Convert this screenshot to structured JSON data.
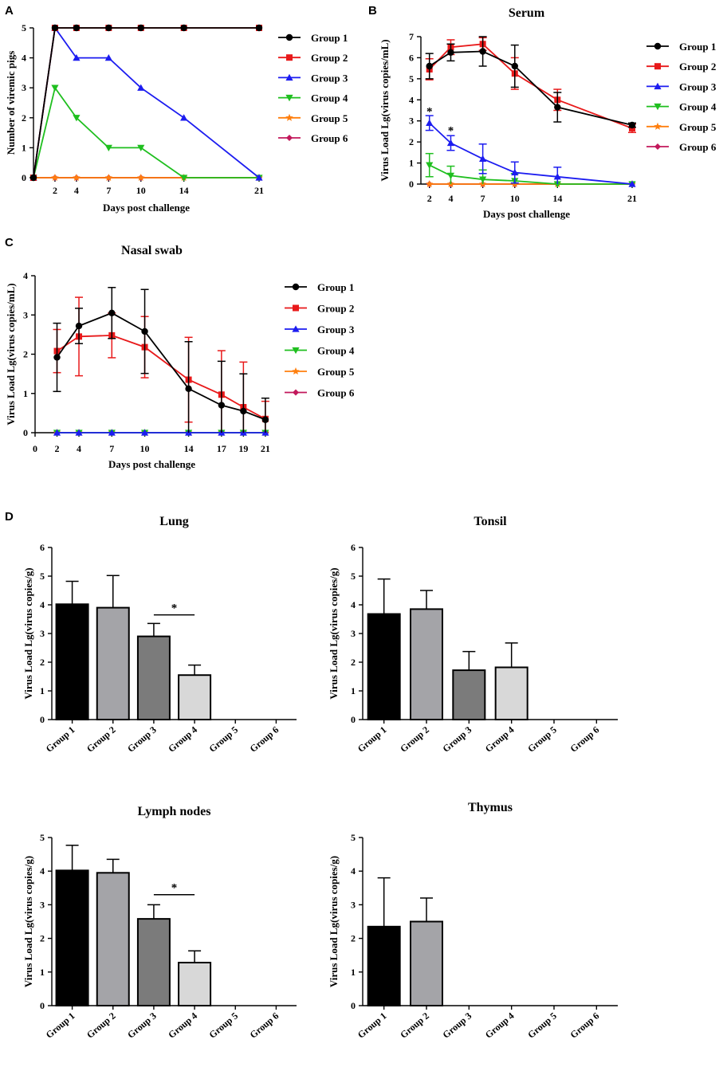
{
  "panels": {
    "A": "A",
    "B": "B",
    "C": "C",
    "D": "D"
  },
  "groups": [
    "Group 1",
    "Group 2",
    "Group 3",
    "Group 4",
    "Group 5",
    "Group 6"
  ],
  "colors": {
    "group1": "#000000",
    "group2": "#e8191a",
    "group3": "#1c1cf0",
    "group4": "#1fbf1f",
    "group5": "#ff7f0e",
    "group6": "#c2185b",
    "bar1": "#000000",
    "bar2": "#a4a4a8",
    "bar3": "#7b7b7b",
    "bar4": "#d8d8d8"
  },
  "markers": [
    "circle",
    "square",
    "triangle-up",
    "triangle-down",
    "star",
    "diamond"
  ],
  "chart_data": [
    {
      "id": "A",
      "type": "line",
      "title": "",
      "xlabel": "Days post challenge",
      "ylabel": "Number of viremic pigs",
      "x": [
        0,
        2,
        4,
        7,
        10,
        14,
        21
      ],
      "xticks": [
        2,
        4,
        7,
        10,
        14,
        21
      ],
      "ylim": [
        0,
        5
      ],
      "yticks": [
        0,
        1,
        2,
        3,
        4,
        5
      ],
      "series": [
        {
          "name": "Group 1",
          "values": [
            0,
            5,
            5,
            5,
            5,
            5,
            5
          ]
        },
        {
          "name": "Group 2",
          "values": [
            0,
            5,
            5,
            5,
            5,
            5,
            5
          ]
        },
        {
          "name": "Group 3",
          "values": [
            0,
            5,
            4,
            4,
            3,
            2,
            0
          ]
        },
        {
          "name": "Group 4",
          "values": [
            0,
            3,
            2,
            1,
            1,
            0,
            0
          ]
        },
        {
          "name": "Group 5",
          "values": [
            0,
            0,
            0,
            0,
            0,
            0,
            0
          ]
        },
        {
          "name": "Group 6",
          "values": [
            0,
            0,
            0,
            0,
            0,
            0,
            0
          ]
        }
      ]
    },
    {
      "id": "B",
      "type": "line",
      "title": "Serum",
      "xlabel": "Days post challenge",
      "ylabel": "Virus Load Lg(virus copies/mL)",
      "x": [
        2,
        4,
        7,
        10,
        14,
        21
      ],
      "xticks": [
        2,
        4,
        7,
        10,
        14,
        21
      ],
      "ylim": [
        0,
        7
      ],
      "yticks": [
        0,
        1,
        2,
        3,
        4,
        5,
        6,
        7
      ],
      "annotations": [
        {
          "text": "*",
          "x": 2,
          "y": 3.5
        },
        {
          "text": "*",
          "x": 4,
          "y": 2.6
        }
      ],
      "series": [
        {
          "name": "Group 1",
          "values": [
            5.6,
            6.25,
            6.3,
            5.6,
            3.65,
            2.8
          ],
          "errors": [
            0.6,
            0.4,
            0.7,
            1.0,
            0.7,
            0.1
          ]
        },
        {
          "name": "Group 2",
          "values": [
            5.45,
            6.5,
            6.65,
            5.25,
            4.0,
            2.65
          ],
          "errors": [
            0.5,
            0.35,
            0.3,
            0.75,
            0.5,
            0.2
          ]
        },
        {
          "name": "Group 3",
          "values": [
            2.9,
            1.95,
            1.2,
            0.55,
            0.35,
            0.0
          ],
          "errors": [
            0.35,
            0.35,
            0.7,
            0.5,
            0.45,
            0.0
          ]
        },
        {
          "name": "Group 4",
          "values": [
            0.9,
            0.4,
            0.22,
            0.15,
            0.0,
            0.0
          ],
          "errors": [
            0.55,
            0.45,
            0.45,
            0.35,
            0.0,
            0.0
          ]
        },
        {
          "name": "Group 5",
          "values": [
            0,
            0,
            0,
            0,
            0,
            0
          ],
          "errors": [
            0,
            0,
            0,
            0,
            0,
            0
          ]
        },
        {
          "name": "Group 6",
          "values": [
            0,
            0,
            0,
            0,
            0,
            0
          ],
          "errors": [
            0,
            0,
            0,
            0,
            0,
            0
          ]
        }
      ]
    },
    {
      "id": "C",
      "type": "line",
      "title": "Nasal swab",
      "xlabel": "Days post challenge",
      "ylabel": "Virus Load Lg(virus copies/mL)",
      "x": [
        2,
        4,
        7,
        10,
        14,
        17,
        19,
        21
      ],
      "xticks": [
        0,
        2,
        4,
        7,
        10,
        14,
        17,
        19,
        21
      ],
      "ylim": [
        0,
        4
      ],
      "yticks": [
        0,
        1,
        2,
        3,
        4
      ],
      "series": [
        {
          "name": "Group 1",
          "values": [
            1.92,
            2.72,
            3.05,
            2.58,
            1.12,
            0.7,
            0.55,
            0.33
          ],
          "errors": [
            0.87,
            0.45,
            0.65,
            1.07,
            1.2,
            1.12,
            0.95,
            0.55
          ]
        },
        {
          "name": "Group 2",
          "values": [
            2.08,
            2.45,
            2.48,
            2.18,
            1.35,
            0.97,
            0.65,
            0.35
          ],
          "errors": [
            0.55,
            1.0,
            0.57,
            0.78,
            1.08,
            1.12,
            1.15,
            0.45
          ]
        },
        {
          "name": "Group 3",
          "values": [
            0,
            0,
            0,
            0,
            0,
            0,
            0,
            0
          ],
          "errors": [
            0,
            0,
            0,
            0,
            0,
            0,
            0,
            0
          ]
        },
        {
          "name": "Group 4",
          "values": [
            0,
            0,
            0,
            0,
            0,
            0,
            0,
            0
          ],
          "errors": [
            0,
            0,
            0,
            0,
            0,
            0,
            0,
            0
          ]
        },
        {
          "name": "Group 5",
          "values": [
            0,
            0,
            0,
            0,
            0,
            0,
            0,
            0
          ],
          "errors": [
            0,
            0,
            0,
            0,
            0,
            0,
            0,
            0
          ]
        },
        {
          "name": "Group 6",
          "values": [
            0,
            0,
            0,
            0,
            0,
            0,
            0,
            0
          ],
          "errors": [
            0,
            0,
            0,
            0,
            0,
            0,
            0,
            0
          ]
        }
      ]
    },
    {
      "id": "D-lung",
      "type": "bar",
      "title": "Lung",
      "ylabel": "Virus Load Lg(virus copies/g)",
      "categories": [
        "Group 1",
        "Group 2",
        "Group 3",
        "Group 4",
        "Group 5",
        "Group 6"
      ],
      "values": [
        4.02,
        3.9,
        2.9,
        1.55,
        0,
        0
      ],
      "errors": [
        0.8,
        1.12,
        0.45,
        0.35,
        0,
        0
      ],
      "ylim": [
        0,
        6
      ],
      "yticks": [
        0,
        1,
        2,
        3,
        4,
        5,
        6
      ],
      "significance": [
        {
          "text": "*",
          "between": [
            "Group 3",
            "Group 4"
          ],
          "y": 3.65
        }
      ]
    },
    {
      "id": "D-tonsil",
      "type": "bar",
      "title": "Tonsil",
      "ylabel": "Virus Load Lg(virus copies/g)",
      "categories": [
        "Group 1",
        "Group 2",
        "Group 3",
        "Group 4",
        "Group 5",
        "Group 6"
      ],
      "values": [
        3.68,
        3.85,
        1.72,
        1.82,
        0,
        0
      ],
      "errors": [
        1.22,
        0.65,
        0.65,
        0.85,
        0,
        0
      ],
      "ylim": [
        0,
        6
      ],
      "yticks": [
        0,
        1,
        2,
        3,
        4,
        5,
        6
      ]
    },
    {
      "id": "D-lymph",
      "type": "bar",
      "title": "Lymph nodes",
      "ylabel": "Virus Load Lg(virus copies/g)",
      "categories": [
        "Group 1",
        "Group 2",
        "Group 3",
        "Group 4",
        "Group 5",
        "Group 6"
      ],
      "values": [
        4.02,
        3.95,
        2.58,
        1.28,
        0,
        0
      ],
      "errors": [
        0.75,
        0.4,
        0.42,
        0.35,
        0,
        0
      ],
      "ylim": [
        0,
        5
      ],
      "yticks": [
        0,
        1,
        2,
        3,
        4,
        5
      ],
      "significance": [
        {
          "text": "*",
          "between": [
            "Group 3",
            "Group 4"
          ],
          "y": 3.3
        }
      ]
    },
    {
      "id": "D-thymus",
      "type": "bar",
      "title": "Thymus",
      "ylabel": "Virus Load Lg(virus copies/g)",
      "categories": [
        "Group 1",
        "Group 2",
        "Group 3",
        "Group 4",
        "Group 5",
        "Group 6"
      ],
      "values": [
        2.35,
        2.5,
        0,
        0,
        0,
        0
      ],
      "errors": [
        1.45,
        0.7,
        0,
        0,
        0,
        0
      ],
      "ylim": [
        0,
        5
      ],
      "yticks": [
        0,
        1,
        2,
        3,
        4,
        5
      ]
    }
  ]
}
